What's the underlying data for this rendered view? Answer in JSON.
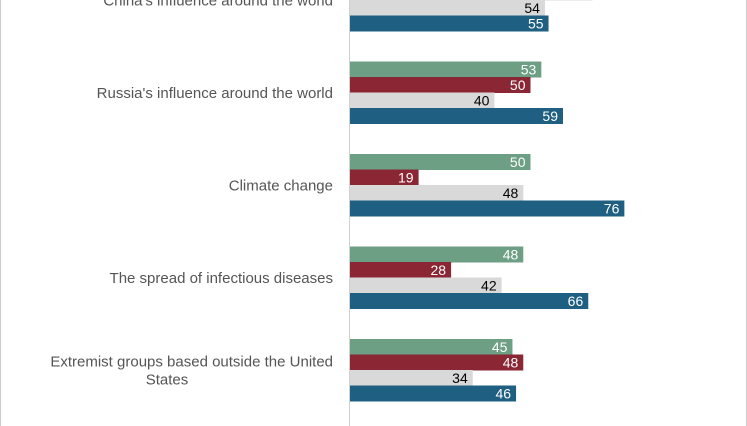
{
  "chart_data": {
    "type": "bar",
    "orientation": "horizontal",
    "categories": [
      [
        "China's influence around the world"
      ],
      [
        "Russia's influence around the world"
      ],
      [
        "Climate change"
      ],
      [
        "The spread of infectious diseases"
      ],
      [
        "Extremist groups based outside the United",
        "States"
      ]
    ],
    "series": [
      {
        "color": "#6c9f84",
        "label_color": "#ffffff",
        "values": [
          null,
          53,
          50,
          48,
          45
        ]
      },
      {
        "color": "#8b2635",
        "label_color": "#ffffff",
        "values": [
          null,
          50,
          19,
          28,
          48
        ]
      },
      {
        "color": "#d9d9d9",
        "label_color": "#000000",
        "values": [
          54,
          40,
          48,
          42,
          34
        ]
      },
      {
        "color": "#1e5f82",
        "label_color": "#ffffff",
        "values": [
          55,
          59,
          76,
          66,
          46
        ]
      }
    ],
    "xlim": [
      0,
      100
    ],
    "legend": "none",
    "grid": false
  }
}
